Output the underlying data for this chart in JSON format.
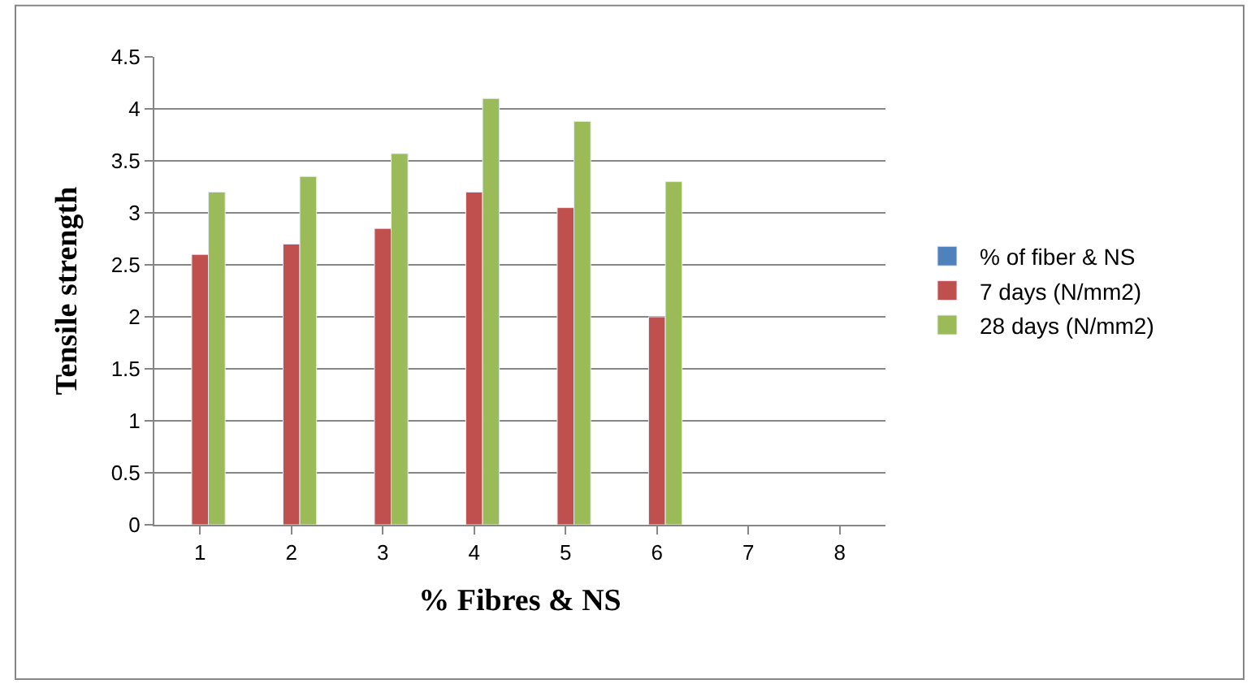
{
  "chart_data": {
    "type": "bar",
    "xlabel": "% Fibres & NS",
    "ylabel": "Tensile strength",
    "categories": [
      "1",
      "2",
      "3",
      "4",
      "5",
      "6",
      "7",
      "8"
    ],
    "series": [
      {
        "name": "% of fiber & NS",
        "color": "#4f81bd",
        "values": [
          null,
          null,
          null,
          null,
          null,
          null,
          null,
          null
        ]
      },
      {
        "name": "7 days (N/mm2)",
        "color": "#c0504d",
        "values": [
          2.6,
          2.7,
          2.85,
          3.2,
          3.05,
          2.0,
          null,
          null
        ]
      },
      {
        "name": "28 days (N/mm2)",
        "color": "#9bbb59",
        "values": [
          3.2,
          3.35,
          3.57,
          4.1,
          3.88,
          3.3,
          null,
          null
        ]
      }
    ],
    "ylim": [
      0,
      4.5
    ],
    "yticks": [
      0,
      0.5,
      1,
      1.5,
      2,
      2.5,
      3,
      3.5,
      4,
      4.5
    ],
    "grid": "y",
    "legend": "right"
  }
}
